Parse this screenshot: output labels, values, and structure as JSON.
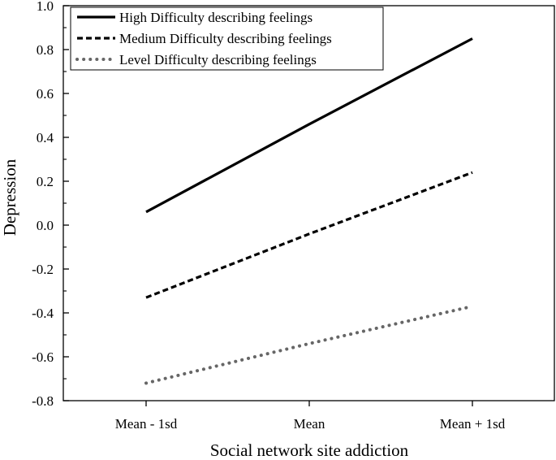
{
  "chart_data": {
    "type": "line",
    "title": "",
    "xlabel": "Social network site addiction",
    "ylabel": "Depression",
    "categories": [
      "Mean - 1sd",
      "Mean",
      "Mean + 1sd"
    ],
    "ylim": [
      -0.8,
      1.0
    ],
    "yticks": [
      -0.8,
      -0.6,
      -0.4,
      -0.2,
      0.0,
      0.2,
      0.4,
      0.6,
      0.8,
      1.0
    ],
    "ytick_labels": [
      "-0.8",
      "-0.6",
      "-0.4",
      "-0.2",
      "0.0",
      "0.2",
      "0.4",
      "0.6",
      "0.8",
      "1.0"
    ],
    "legend_position": "top-left",
    "series": [
      {
        "name": "High Difficulty describing feelings",
        "values": [
          0.06,
          0.46,
          0.85
        ],
        "style": "solid",
        "color": "#000000"
      },
      {
        "name": "Medium Difficulty describing feelings",
        "values": [
          -0.33,
          -0.04,
          0.24
        ],
        "style": "dashed",
        "color": "#000000"
      },
      {
        "name": "Level Difficulty describing feelings",
        "values": [
          -0.72,
          -0.54,
          -0.37
        ],
        "style": "dotted",
        "color": "#666666"
      }
    ]
  }
}
